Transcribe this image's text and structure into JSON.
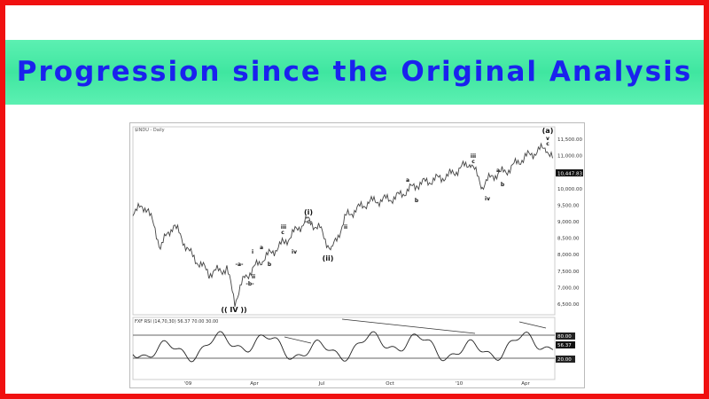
{
  "title": "Progression since the Original Analysis",
  "chart": {
    "heading": "$INDU - Daily",
    "price_axis_labels": [
      "11,500.00",
      "11,000.00",
      "10,500.00",
      "10,000.00",
      "9,500.00",
      "9,000.00",
      "8,500.00",
      "8,000.00",
      "7,500.00",
      "7,000.00",
      "6,500.00"
    ],
    "last_price": "10,447.83",
    "rsi_label": "FXF RSI (14,70,30) 56.37 70.00 30.00",
    "rsi_axis_labels": [
      "80.00",
      "56.37",
      "20.00"
    ],
    "time_axis_labels": [
      "'09",
      "Apr",
      "Jul",
      "Oct",
      "'10",
      "Apr"
    ],
    "wave_labels": [
      "(a)",
      "v",
      "c",
      "iii",
      "c",
      "a",
      "b",
      "iv",
      "a",
      "b",
      "(i)",
      "-c-",
      "iii",
      "c",
      "iv",
      "ii",
      "(ii)",
      "i",
      "a",
      "b",
      "ii",
      "-a-",
      "-b-",
      "(( IV ))"
    ]
  }
}
